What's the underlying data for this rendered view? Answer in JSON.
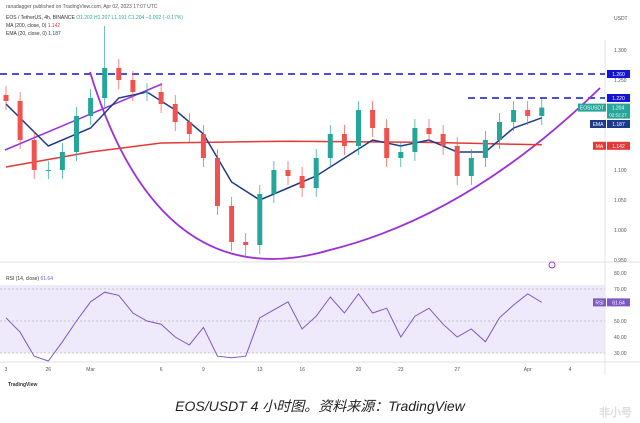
{
  "header": {
    "published": "ranadagger published on TradingView.com, Apr 02, 2023 17:07 UTC",
    "symbol": "EOS / TetherUS, 4h, BINANCE",
    "ohlc": "O1.202 H1.207 L1.191 C1.204 −0.002 (−0.17%)",
    "ma_label": "MA (200, close, 0)",
    "ma_value": "1.142",
    "ema_label": "EMA (20, close, 0)",
    "ema_value": "1.187",
    "rsi_label": "RSI (14, close)",
    "rsi_value": "61.64"
  },
  "axis": {
    "currency": "USDT",
    "price_ticks": [
      "1.300",
      "1.250",
      "1.100",
      "1.050",
      "1.000",
      "0.950"
    ],
    "rsi_ticks": [
      "80.00",
      "70.00",
      "50.00",
      "40.00",
      "30.00"
    ],
    "x_ticks": [
      "3",
      "26",
      "Mar",
      "6",
      "9",
      "13",
      "16",
      "20",
      "23",
      "27",
      "Apr",
      "4"
    ]
  },
  "tags": {
    "level1": "1.260",
    "level2": "1.220",
    "symbol": "EOSUSDT",
    "price": "1.204",
    "countdown": "02:52:27",
    "ema": "EMA",
    "ema_value": "1.187",
    "ma": "MA",
    "ma_value": "1.142",
    "rsi": "RSI",
    "rsi_value": "61.64"
  },
  "colors": {
    "up": "#26a69a",
    "down": "#ef5350",
    "ema": "#1e3a8a",
    "ma": "#e53935",
    "level": "#1414d4",
    "arc": "#9b30d9",
    "rsi": "#7e57c2"
  },
  "footer": {
    "logo": "TradingView",
    "caption": "EOS/USDT 4 小时图。资料来源：TradingView",
    "watermark": "非小号"
  },
  "chart_data": {
    "type": "candlestick",
    "title": "EOS / TetherUS, 4h, BINANCE",
    "x_start": "Feb 23",
    "x_end": "Apr 2",
    "ylim": [
      0.95,
      1.33
    ],
    "close": [
      1.215,
      1.15,
      1.1,
      1.1,
      1.13,
      1.19,
      1.22,
      1.27,
      1.25,
      1.23,
      1.23,
      1.21,
      1.18,
      1.16,
      1.12,
      1.04,
      0.98,
      0.975,
      1.06,
      1.1,
      1.09,
      1.07,
      1.12,
      1.16,
      1.14,
      1.2,
      1.17,
      1.12,
      1.13,
      1.17,
      1.16,
      1.14,
      1.09,
      1.12,
      1.15,
      1.18,
      1.2,
      1.19,
      1.204
    ],
    "high_max": {
      "date": "Mar 2",
      "value": 1.34
    },
    "low_min": {
      "date": "Mar 12",
      "value": 0.955
    },
    "ema20": [
      [
        0,
        1.21
      ],
      [
        3,
        1.14
      ],
      [
        6,
        1.17
      ],
      [
        8,
        1.22
      ],
      [
        10,
        1.23
      ],
      [
        12,
        1.2
      ],
      [
        14,
        1.16
      ],
      [
        16,
        1.08
      ],
      [
        18,
        1.05
      ],
      [
        20,
        1.07
      ],
      [
        22,
        1.09
      ],
      [
        24,
        1.12
      ],
      [
        26,
        1.15
      ],
      [
        28,
        1.14
      ],
      [
        30,
        1.15
      ],
      [
        32,
        1.13
      ],
      [
        34,
        1.13
      ],
      [
        36,
        1.17
      ],
      [
        38,
        1.187
      ]
    ],
    "ma200": [
      [
        0,
        1.105
      ],
      [
        6,
        1.13
      ],
      [
        11,
        1.145
      ],
      [
        20,
        1.148
      ],
      [
        30,
        1.146
      ],
      [
        38,
        1.142
      ]
    ],
    "levels": [
      1.26,
      1.22
    ],
    "rsi": [
      52,
      43,
      28,
      25,
      37,
      50,
      62,
      68,
      66,
      55,
      50,
      48,
      40,
      35,
      46,
      28,
      27,
      28,
      52,
      57,
      62,
      45,
      53,
      65,
      55,
      67,
      55,
      58,
      40,
      53,
      58,
      48,
      40,
      45,
      37,
      52,
      60,
      67,
      61.64
    ],
    "rsi_range": [
      20,
      80
    ],
    "rsi_bands": [
      70,
      50,
      30
    ]
  }
}
